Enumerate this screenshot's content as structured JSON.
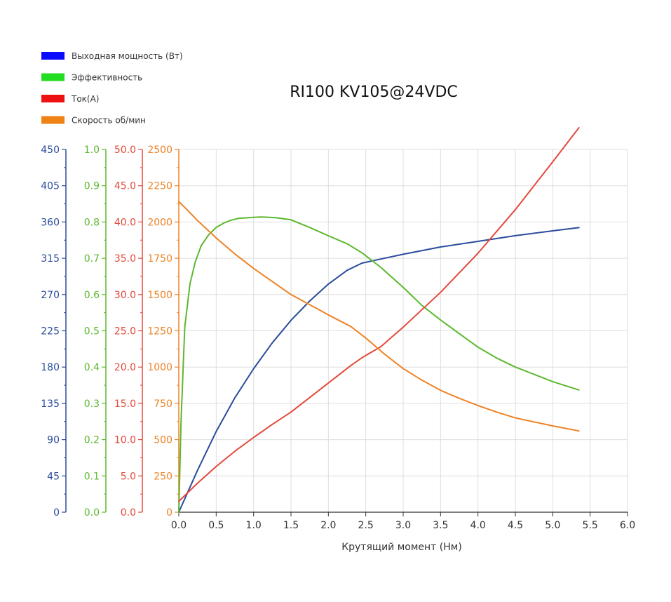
{
  "chart_data": {
    "type": "line",
    "title": "RI100 KV105@24VDC",
    "xlabel": "Крутящий момент (Нм)",
    "x_ticks": [
      "0.0",
      "0.5",
      "1.0",
      "1.5",
      "2.0",
      "2.5",
      "3.0",
      "3.5",
      "4.0",
      "4.5",
      "5.0",
      "5.5",
      "6.0"
    ],
    "xlim": [
      0,
      6
    ],
    "grid": true,
    "legend_position": "top-left",
    "y_axes": [
      {
        "id": "power",
        "color": "#2b4c9c",
        "ylim": [
          0,
          450
        ],
        "ticks": [
          "0",
          "45",
          "90",
          "135",
          "180",
          "225",
          "270",
          "315",
          "360",
          "405",
          "450"
        ]
      },
      {
        "id": "eff",
        "color": "#5cb82e",
        "ylim": [
          0,
          1
        ],
        "ticks": [
          "0.0",
          "0.1",
          "0.2",
          "0.3",
          "0.4",
          "0.5",
          "0.6",
          "0.7",
          "0.8",
          "0.9",
          "1.0"
        ]
      },
      {
        "id": "current",
        "color": "#e24a3c",
        "ylim": [
          0,
          50
        ],
        "ticks": [
          "0.0",
          "5.0",
          "10.0",
          "15.0",
          "20.0",
          "25.0",
          "30.0",
          "35.0",
          "40.0",
          "45.0",
          "50.0"
        ]
      },
      {
        "id": "speed",
        "color": "#ee8225",
        "ylim": [
          0,
          2500
        ],
        "ticks": [
          "0",
          "250",
          "500",
          "750",
          "1000",
          "1250",
          "1500",
          "1750",
          "2000",
          "2250",
          "2500"
        ]
      }
    ],
    "series": [
      {
        "name": "Выходная мощность (Вт)",
        "legend_color": "#0a0aff",
        "color": "#2b4c9c",
        "axis": "power",
        "x": [
          0.0,
          0.25,
          0.5,
          0.75,
          1.0,
          1.25,
          1.5,
          1.75,
          2.0,
          2.25,
          2.45,
          2.7,
          3.0,
          3.5,
          4.0,
          4.5,
          5.0,
          5.35
        ],
        "values": [
          0,
          52,
          100,
          142,
          178,
          210,
          238,
          262,
          283,
          300,
          309,
          314,
          320,
          329,
          336,
          343,
          349,
          353
        ]
      },
      {
        "name": "Эффективность",
        "legend_color": "#22dd22",
        "color": "#5cb82e",
        "axis": "eff",
        "x": [
          0.0,
          0.03,
          0.08,
          0.15,
          0.22,
          0.3,
          0.4,
          0.5,
          0.6,
          0.7,
          0.8,
          1.0,
          1.1,
          1.3,
          1.5,
          1.75,
          2.0,
          2.25,
          2.45,
          2.7,
          3.0,
          3.25,
          3.5,
          3.8,
          4.0,
          4.25,
          4.5,
          4.75,
          5.0,
          5.35
        ],
        "values": [
          0.0,
          0.25,
          0.51,
          0.63,
          0.69,
          0.735,
          0.765,
          0.785,
          0.797,
          0.805,
          0.81,
          0.813,
          0.814,
          0.812,
          0.806,
          0.785,
          0.762,
          0.74,
          0.715,
          0.675,
          0.62,
          0.57,
          0.53,
          0.485,
          0.455,
          0.425,
          0.4,
          0.38,
          0.36,
          0.337
        ]
      },
      {
        "name": "Ток(А)",
        "legend_color": "#ee1111",
        "color": "#e24a3c",
        "axis": "current",
        "x": [
          0.0,
          0.25,
          0.5,
          0.75,
          1.0,
          1.25,
          1.5,
          1.75,
          2.0,
          2.3,
          2.45,
          2.7,
          3.0,
          3.5,
          4.0,
          4.5,
          5.0,
          5.35
        ],
        "values": [
          1.5,
          4.0,
          6.3,
          8.4,
          10.3,
          12.1,
          13.8,
          15.8,
          17.8,
          20.2,
          21.3,
          22.8,
          25.5,
          30.3,
          35.7,
          41.7,
          48.3,
          53.0
        ]
      },
      {
        "name": "Скорость об/мин",
        "legend_color": "#ee8214",
        "color": "#ee8225",
        "axis": "speed",
        "x": [
          0.0,
          0.1,
          0.25,
          0.5,
          0.75,
          1.0,
          1.25,
          1.5,
          1.75,
          2.0,
          2.3,
          2.5,
          2.75,
          3.0,
          3.25,
          3.5,
          3.75,
          4.0,
          4.25,
          4.5,
          5.0,
          5.35
        ],
        "values": [
          2140,
          2090,
          2010,
          1890,
          1780,
          1680,
          1590,
          1500,
          1430,
          1360,
          1280,
          1200,
          1090,
          990,
          910,
          840,
          785,
          735,
          690,
          650,
          595,
          560
        ]
      }
    ]
  }
}
